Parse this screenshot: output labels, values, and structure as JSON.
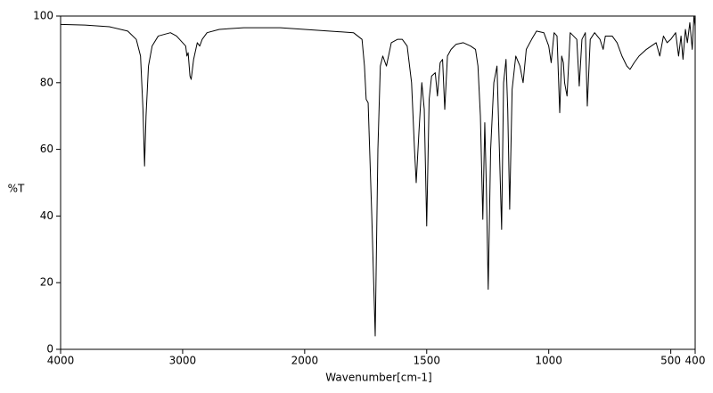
{
  "chart_data": {
    "type": "line",
    "xlabel": "Wavenumber[cm-1]",
    "ylabel": "%T",
    "xlim": [
      4000,
      400
    ],
    "xbreak": 2000,
    "ylim": [
      0,
      100
    ],
    "xticks": [
      4000,
      3000,
      2000,
      1500,
      1000,
      500,
      400
    ],
    "yticks": [
      0,
      20,
      40,
      60,
      80,
      100
    ],
    "color": "#000000",
    "x": [
      4000,
      3800,
      3600,
      3450,
      3380,
      3345,
      3325,
      3312,
      3300,
      3280,
      3250,
      3200,
      3100,
      3050,
      3000,
      2975,
      2965,
      2955,
      2940,
      2930,
      2910,
      2880,
      2860,
      2840,
      2800,
      2700,
      2500,
      2200,
      2000,
      1900,
      1800,
      1765,
      1755,
      1748,
      1740,
      1725,
      1711,
      1700,
      1690,
      1680,
      1665,
      1645,
      1620,
      1600,
      1580,
      1562,
      1550,
      1543,
      1532,
      1520,
      1510,
      1500,
      1490,
      1480,
      1465,
      1456,
      1445,
      1435,
      1426,
      1415,
      1400,
      1380,
      1350,
      1320,
      1300,
      1290,
      1280,
      1270,
      1262,
      1256,
      1248,
      1238,
      1225,
      1212,
      1203,
      1193,
      1185,
      1175,
      1168,
      1160,
      1150,
      1135,
      1118,
      1105,
      1092,
      1070,
      1050,
      1020,
      1000,
      990,
      978,
      966,
      955,
      947,
      940,
      935,
      925,
      912,
      885,
      875,
      864,
      850,
      842,
      830,
      812,
      790,
      777,
      768,
      740,
      720,
      700,
      680,
      667,
      650,
      630,
      600,
      580,
      560,
      545,
      530,
      515,
      500,
      480,
      468,
      458,
      450,
      440,
      432,
      422,
      412,
      405,
      400
    ],
    "values": [
      97.5,
      97.3,
      96.8,
      95.5,
      93,
      88,
      72,
      55,
      70,
      85,
      91,
      94,
      95,
      94,
      92,
      91,
      88,
      89,
      82,
      81,
      87,
      92,
      91,
      93,
      95,
      96,
      96.5,
      96.5,
      96,
      95.5,
      95,
      93,
      85,
      75,
      74,
      40,
      4,
      60,
      85,
      88,
      85,
      92,
      93,
      93,
      91,
      80,
      60,
      50,
      65,
      80,
      72,
      37,
      75,
      82,
      83,
      76,
      86,
      87,
      72,
      88,
      90,
      91.5,
      92,
      91,
      90,
      85,
      70,
      39,
      68,
      50,
      18,
      60,
      80,
      85,
      62,
      36,
      80,
      87,
      72,
      42,
      78,
      88,
      85,
      80,
      90,
      93,
      95.5,
      95,
      91,
      86,
      95,
      94,
      71,
      88,
      86,
      80,
      76,
      95,
      93,
      79,
      93,
      95,
      73,
      93,
      95,
      93,
      90,
      94,
      94,
      92,
      88,
      85,
      84,
      86,
      88,
      90,
      91,
      92,
      88,
      94,
      92,
      93,
      95,
      88,
      94,
      87,
      96,
      92,
      98,
      90,
      100,
      97
    ]
  }
}
